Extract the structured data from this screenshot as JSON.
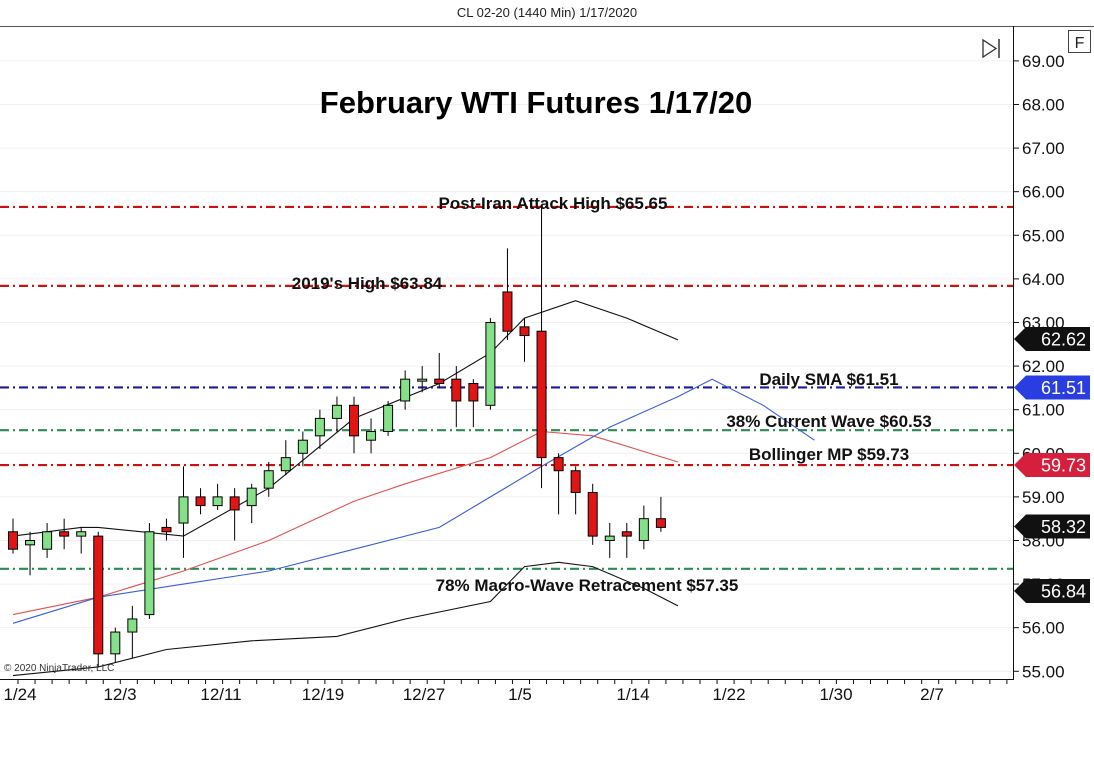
{
  "header": {
    "caption": "CL 02-20 (1440 Min)  1/17/2020"
  },
  "toolbar": {
    "flag_label": "F"
  },
  "copyright": "© 2020 NinjaTrader, LLC",
  "colors": {
    "bull": "#86e08a",
    "bear": "#e01515",
    "red_line": "#cc1111",
    "blue_line": "#1a1aa0",
    "green_line": "#2f8a55",
    "bb_band": "#111111",
    "sma": "#3b5bdb",
    "bb_mid": "#e05050",
    "tag_dark": "#111111",
    "tag_blue": "#2a3de0",
    "tag_red": "#d51f3d"
  },
  "chart_data": {
    "type": "candlestick",
    "title": "February WTI Futures 1/17/20",
    "ylim": [
      54.8,
      69.8
    ],
    "y_ticks": [
      "55.00",
      "56.00",
      "57.00",
      "58.00",
      "59.00",
      "60.00",
      "61.00",
      "62.00",
      "63.00",
      "64.00",
      "65.00",
      "66.00",
      "67.00",
      "68.00",
      "69.00"
    ],
    "x_ticks": [
      "1/24",
      "12/3",
      "12/11",
      "12/19",
      "12/27",
      "1/5",
      "1/14",
      "1/22",
      "1/30",
      "2/7"
    ],
    "candles": [
      {
        "o": 58.2,
        "h": 58.5,
        "l": 57.7,
        "c": 57.8
      },
      {
        "o": 57.9,
        "h": 58.2,
        "l": 57.2,
        "c": 58.0
      },
      {
        "o": 57.8,
        "h": 58.4,
        "l": 57.6,
        "c": 58.2
      },
      {
        "o": 58.2,
        "h": 58.5,
        "l": 57.8,
        "c": 58.1
      },
      {
        "o": 58.1,
        "h": 58.3,
        "l": 57.7,
        "c": 58.2
      },
      {
        "o": 58.1,
        "h": 58.2,
        "l": 55.1,
        "c": 55.4
      },
      {
        "o": 55.4,
        "h": 56.0,
        "l": 55.2,
        "c": 55.9
      },
      {
        "o": 55.9,
        "h": 56.5,
        "l": 55.3,
        "c": 56.2
      },
      {
        "o": 56.3,
        "h": 58.4,
        "l": 56.2,
        "c": 58.2
      },
      {
        "o": 58.3,
        "h": 58.5,
        "l": 58.0,
        "c": 58.2
      },
      {
        "o": 58.4,
        "h": 59.7,
        "l": 57.6,
        "c": 59.0
      },
      {
        "o": 59.0,
        "h": 59.2,
        "l": 58.6,
        "c": 58.8
      },
      {
        "o": 58.8,
        "h": 59.3,
        "l": 58.7,
        "c": 59.0
      },
      {
        "o": 59.0,
        "h": 59.2,
        "l": 58.0,
        "c": 58.7
      },
      {
        "o": 58.8,
        "h": 59.3,
        "l": 58.4,
        "c": 59.2
      },
      {
        "o": 59.2,
        "h": 59.8,
        "l": 59.0,
        "c": 59.6
      },
      {
        "o": 59.6,
        "h": 60.3,
        "l": 59.5,
        "c": 59.9
      },
      {
        "o": 60.0,
        "h": 60.5,
        "l": 59.7,
        "c": 60.3
      },
      {
        "o": 60.4,
        "h": 61.0,
        "l": 60.1,
        "c": 60.8
      },
      {
        "o": 60.8,
        "h": 61.3,
        "l": 60.5,
        "c": 61.1
      },
      {
        "o": 61.1,
        "h": 61.3,
        "l": 60.0,
        "c": 60.4
      },
      {
        "o": 60.3,
        "h": 60.8,
        "l": 60.0,
        "c": 60.5
      },
      {
        "o": 60.5,
        "h": 61.2,
        "l": 60.4,
        "c": 61.1
      },
      {
        "o": 61.2,
        "h": 61.9,
        "l": 61.0,
        "c": 61.7
      },
      {
        "o": 61.7,
        "h": 62.0,
        "l": 61.4,
        "c": 61.7
      },
      {
        "o": 61.7,
        "h": 62.3,
        "l": 61.5,
        "c": 61.6
      },
      {
        "o": 61.7,
        "h": 62.0,
        "l": 60.6,
        "c": 61.2
      },
      {
        "o": 61.6,
        "h": 61.7,
        "l": 60.6,
        "c": 61.2
      },
      {
        "o": 61.1,
        "h": 63.1,
        "l": 61.0,
        "c": 63.0
      },
      {
        "o": 63.7,
        "h": 64.7,
        "l": 62.6,
        "c": 62.8
      },
      {
        "o": 62.9,
        "h": 63.1,
        "l": 62.1,
        "c": 62.7
      },
      {
        "o": 62.8,
        "h": 65.65,
        "l": 59.2,
        "c": 59.9
      },
      {
        "o": 59.9,
        "h": 60.0,
        "l": 58.6,
        "c": 59.6
      },
      {
        "o": 59.6,
        "h": 59.7,
        "l": 58.6,
        "c": 59.1
      },
      {
        "o": 59.1,
        "h": 59.3,
        "l": 57.9,
        "c": 58.1
      },
      {
        "o": 58.0,
        "h": 58.4,
        "l": 57.6,
        "c": 58.1
      },
      {
        "o": 58.2,
        "h": 58.4,
        "l": 57.6,
        "c": 58.1
      },
      {
        "o": 58.0,
        "h": 58.8,
        "l": 57.8,
        "c": 58.5
      },
      {
        "o": 58.5,
        "h": 59.0,
        "l": 58.2,
        "c": 58.3
      }
    ],
    "series": [
      {
        "kind": "bb_upper",
        "x": [
          0,
          4,
          5,
          10,
          15,
          20,
          25,
          28,
          30,
          33,
          36,
          39
        ],
        "y": [
          58.1,
          58.3,
          58.3,
          58.1,
          59.2,
          60.8,
          61.6,
          62.3,
          63.1,
          63.5,
          63.1,
          62.6
        ]
      },
      {
        "kind": "bb_lower",
        "x": [
          0,
          5,
          9,
          14,
          19,
          23,
          28,
          30,
          32,
          34,
          37,
          39
        ],
        "y": [
          54.9,
          55.1,
          55.5,
          55.7,
          55.8,
          56.2,
          56.6,
          57.4,
          57.5,
          57.4,
          56.9,
          56.5
        ]
      },
      {
        "kind": "bb_mid",
        "x": [
          0,
          5,
          10,
          15,
          20,
          23,
          28,
          31,
          34,
          39
        ],
        "y": [
          56.3,
          56.7,
          57.3,
          58.0,
          58.9,
          59.3,
          59.9,
          60.5,
          60.4,
          59.8
        ]
      },
      {
        "kind": "sma",
        "x": [
          0,
          5,
          10,
          15,
          20,
          25,
          28,
          31,
          35,
          39,
          41,
          44,
          47
        ],
        "y": [
          56.1,
          56.7,
          57.0,
          57.3,
          57.8,
          58.3,
          59.0,
          59.7,
          60.6,
          61.3,
          61.7,
          61.1,
          60.3
        ]
      }
    ],
    "levels": [
      {
        "label": "Post-Iran Attack High $65.65",
        "value": 65.65,
        "style": "red"
      },
      {
        "label": "2019's High $63.84",
        "value": 63.84,
        "style": "red"
      },
      {
        "label": "Daily SMA $61.51",
        "value": 61.51,
        "style": "blue"
      },
      {
        "label": "38% Current Wave $60.53",
        "value": 60.53,
        "style": "green"
      },
      {
        "label": "Bollinger MP $59.73",
        "value": 59.73,
        "style": "red"
      },
      {
        "label": "78% Macro-Wave Retracement $57.35",
        "value": 57.35,
        "style": "green"
      }
    ],
    "price_tags": [
      {
        "text": "62.62",
        "value": 62.62,
        "style": "dark"
      },
      {
        "text": "61.51",
        "value": 61.51,
        "style": "blue"
      },
      {
        "text": "59.73",
        "value": 59.73,
        "style": "red"
      },
      {
        "text": "58.32",
        "value": 58.32,
        "style": "dark"
      },
      {
        "text": "56.84",
        "value": 56.84,
        "style": "dark"
      }
    ]
  }
}
